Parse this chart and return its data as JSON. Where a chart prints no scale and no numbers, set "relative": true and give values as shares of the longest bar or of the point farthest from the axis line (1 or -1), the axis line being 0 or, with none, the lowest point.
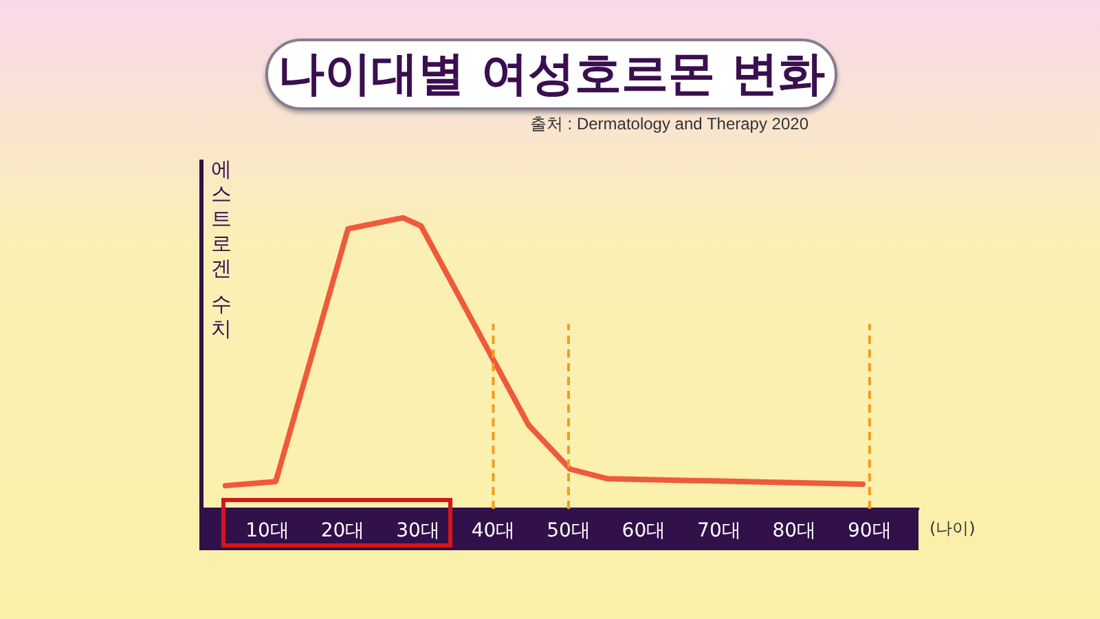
{
  "chart_data": {
    "type": "line",
    "title": "나이대별 여성호르몬 변화",
    "annotations": [
      "출처 : Dermatology and Therapy 2020"
    ],
    "xlabel": "(나이)",
    "ylabel": "에스트로겐 수치",
    "relative": true,
    "marker": "none",
    "x": [
      4.4,
      11.1,
      20.7,
      28,
      30.4,
      44.7,
      50.2,
      55.1,
      89.1
    ],
    "values": [
      0.08,
      0.094,
      0.962,
      1,
      0.972,
      0.288,
      0.137,
      0.104,
      0.085
    ],
    "color": "#ee5a3a",
    "xlim": [
      1.5,
      96.5
    ],
    "xticks": [
      {
        "value": 10,
        "label": "10대"
      },
      {
        "value": 20,
        "label": "20대"
      },
      {
        "value": 30,
        "label": "30대"
      },
      {
        "value": 40,
        "label": "40대"
      },
      {
        "value": 50,
        "label": "50대"
      },
      {
        "value": 60,
        "label": "60대"
      },
      {
        "value": 70,
        "label": "70대"
      },
      {
        "value": 80,
        "label": "80대"
      },
      {
        "value": 90,
        "label": "90대"
      }
    ],
    "ref_lines": [
      {
        "axis": "x",
        "value": 40,
        "color": "#f39c1f",
        "line_style": "dashed"
      },
      {
        "axis": "x",
        "value": 50,
        "color": "#f39c1f",
        "line_style": "dashed"
      },
      {
        "axis": "x",
        "value": 90,
        "color": "#f39c1f",
        "line_style": "dashed"
      }
    ]
  }
}
